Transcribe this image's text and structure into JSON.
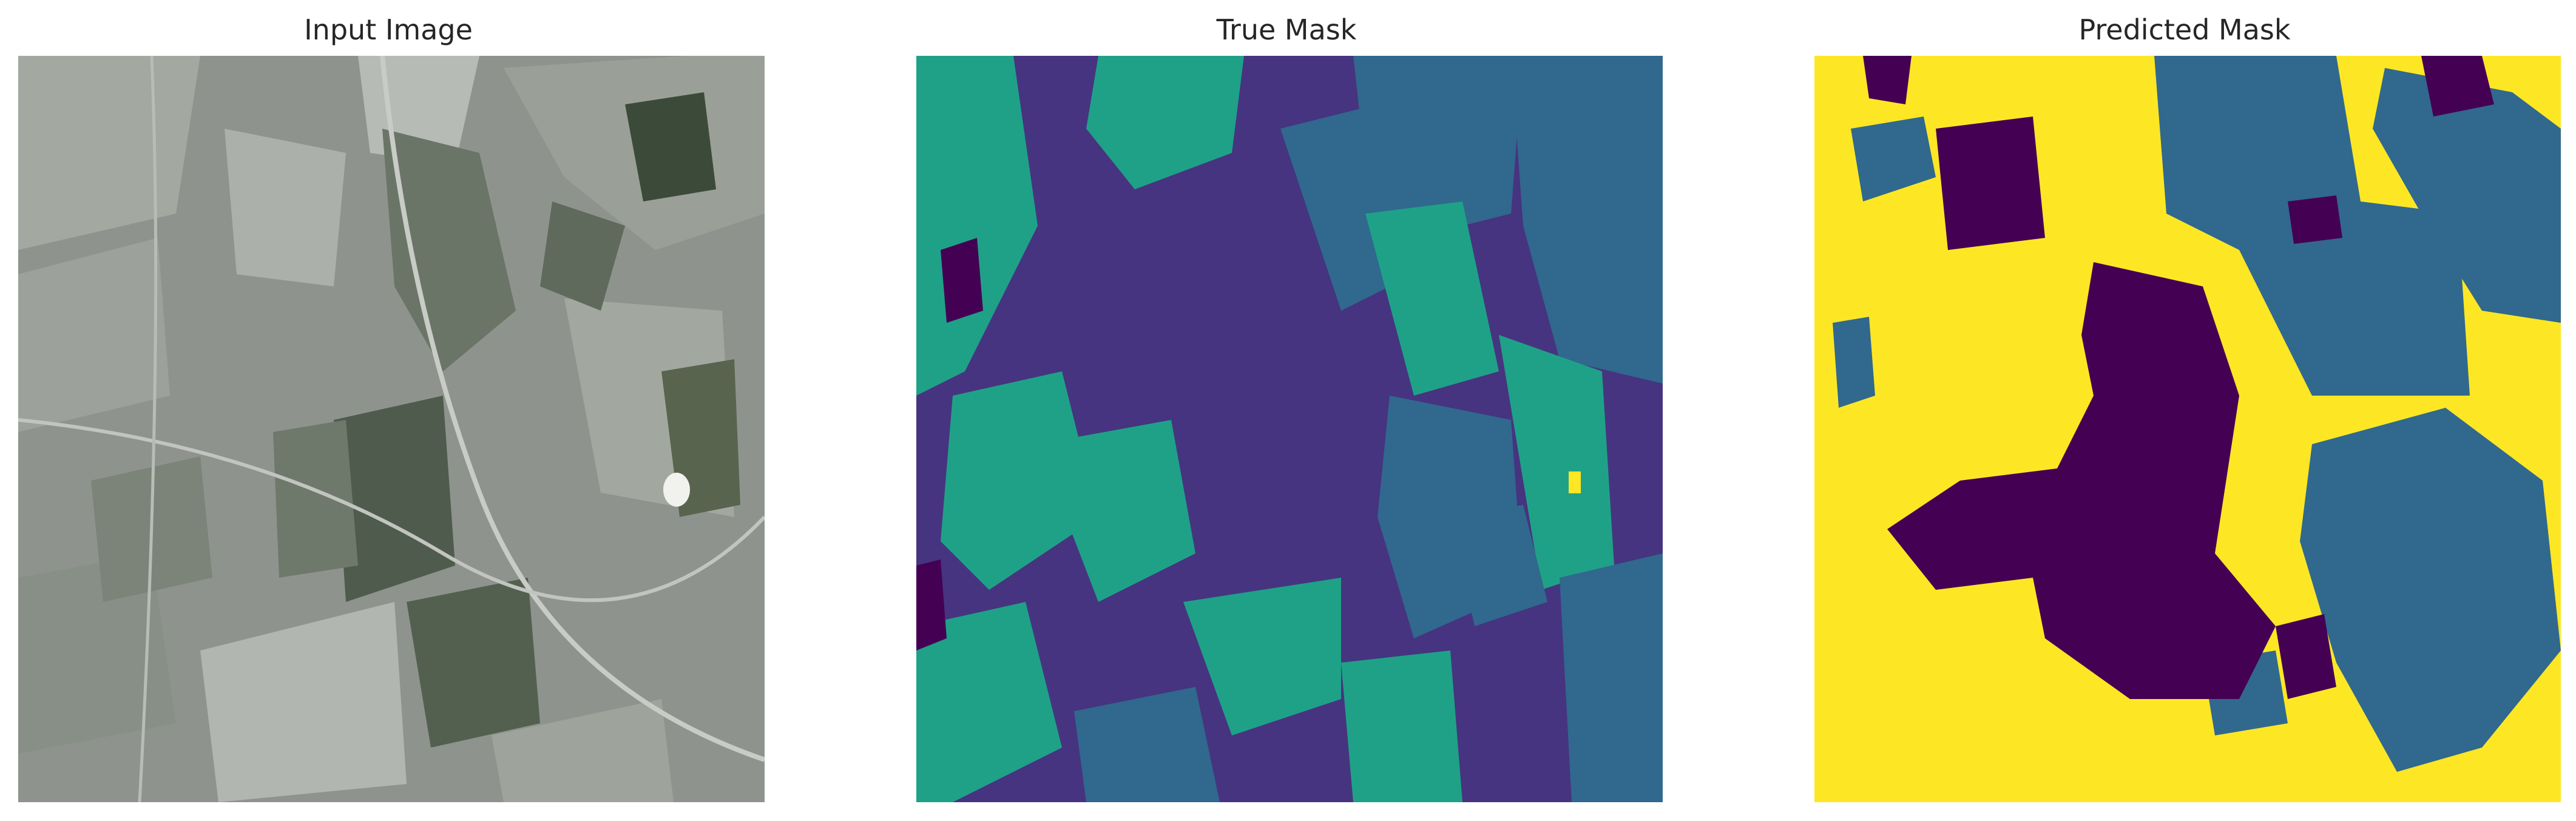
{
  "figure": {
    "panels": [
      {
        "title": "Input Image"
      },
      {
        "title": "True Mask"
      },
      {
        "title": "Predicted Mask"
      }
    ]
  },
  "colors": {
    "viridis_0": "#440154",
    "viridis_1": "#3b528b",
    "viridis_2": "#21918c",
    "viridis_3": "#5ec962",
    "viridis_4": "#fde725",
    "mask_dark": "#440154",
    "mask_indigo": "#463480",
    "mask_teal_blue": "#31688e",
    "mask_teal": "#1fa187",
    "mask_yellow": "#fde725",
    "photo_base": "#8a918a",
    "photo_dark_field": "#4f5a4c",
    "photo_light_field": "#b9bdb7"
  }
}
